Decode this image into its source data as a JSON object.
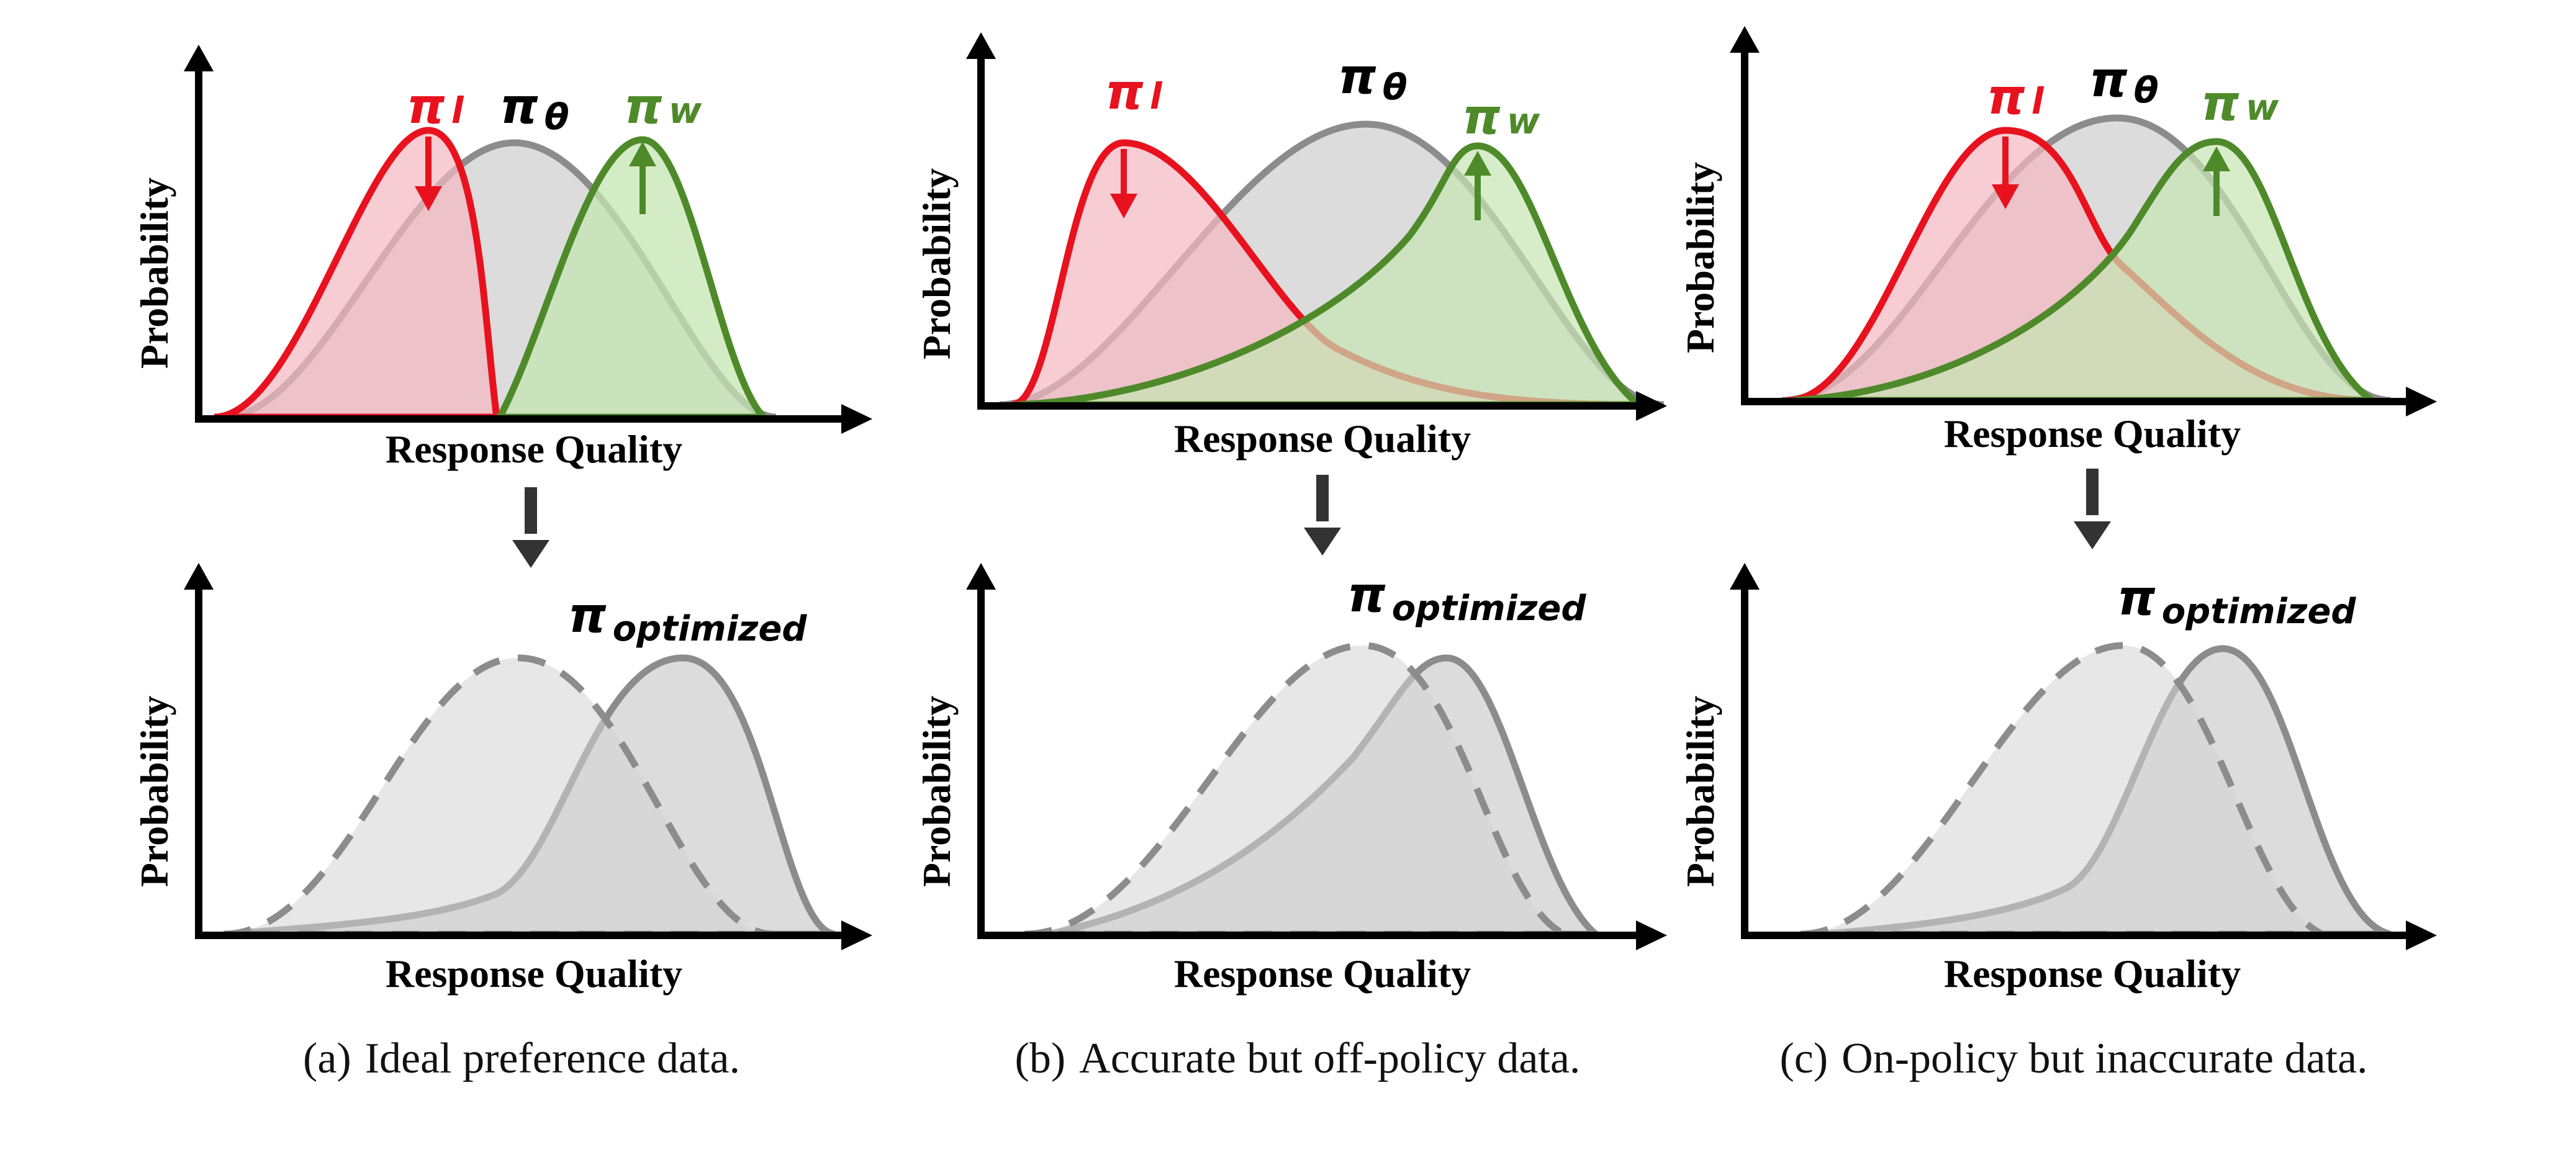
{
  "colors": {
    "loser": "#e8121f",
    "loser_fill": "#f3b6c0",
    "winner": "#4e8a2a",
    "winner_fill": "#c6e6b2",
    "policy": "#7f7f7f",
    "policy_fill": "#d3d3d3",
    "axis": "#000000",
    "flow_arrow": "#333333"
  },
  "panels": [
    {
      "id": "a",
      "top": {
        "ylabel": "Probability",
        "xlabel": "Response Quality",
        "labels": {
          "loser": "π",
          "loser_sub": "l",
          "policy": "π",
          "policy_sub": "θ",
          "winner": "π",
          "winner_sub": "w"
        }
      },
      "bottom": {
        "ylabel": "Probability",
        "xlabel": "Response Quality",
        "label": "π",
        "label_sub": "optimized"
      },
      "caption_tag": "(a)",
      "caption_text": "Ideal preference data."
    },
    {
      "id": "b",
      "top": {
        "ylabel": "Probability",
        "xlabel": "Response Quality",
        "labels": {
          "loser": "π",
          "loser_sub": "l",
          "policy": "π",
          "policy_sub": "θ",
          "winner": "π",
          "winner_sub": "w"
        }
      },
      "bottom": {
        "ylabel": "Probability",
        "xlabel": "Response Quality",
        "label": "π",
        "label_sub": "optimized"
      },
      "caption_tag": "(b)",
      "caption_text": "Accurate but off-policy data."
    },
    {
      "id": "c",
      "top": {
        "ylabel": "Probability",
        "xlabel": "Response Quality",
        "labels": {
          "loser": "π",
          "loser_sub": "l",
          "policy": "π",
          "policy_sub": "θ",
          "winner": "π",
          "winner_sub": "w"
        }
      },
      "bottom": {
        "ylabel": "Probability",
        "xlabel": "Response Quality",
        "label": "π",
        "label_sub": "optimized"
      },
      "caption_tag": "(c)",
      "caption_text": "On-policy but inaccurate data."
    }
  ]
}
